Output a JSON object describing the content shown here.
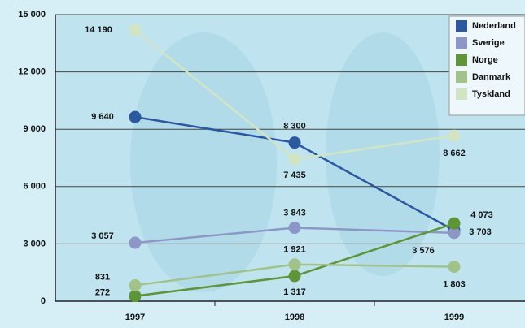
{
  "chart_data": {
    "type": "line",
    "categories": [
      "1997",
      "1998",
      "1999"
    ],
    "series": [
      {
        "name": "Nederland",
        "color": "#2b58a0",
        "values": [
          9640,
          8300,
          3703
        ],
        "value_labels": [
          "9 640",
          "8 300",
          "3 703"
        ]
      },
      {
        "name": "Sverige",
        "color": "#8e96c8",
        "values": [
          3057,
          3843,
          3576
        ],
        "value_labels": [
          "3 057",
          "3 843",
          "3 576"
        ]
      },
      {
        "name": "Norge",
        "color": "#5e9535",
        "values": [
          272,
          1317,
          4073
        ],
        "value_labels": [
          "272",
          "1 317",
          "4 073"
        ]
      },
      {
        "name": "Danmark",
        "color": "#a2c387",
        "values": [
          831,
          1921,
          1803
        ],
        "value_labels": [
          "831",
          "1 921",
          "1 803"
        ]
      },
      {
        "name": "Tyskland",
        "color": "#d3e4c3",
        "values": [
          14190,
          7435,
          8662
        ],
        "value_labels": [
          "14 190",
          "7 435",
          "8 662"
        ]
      }
    ],
    "ylim": [
      0,
      15000
    ],
    "yticks": [
      0,
      {
        "value": 3000,
        "label": "3 000"
      },
      {
        "value": 6000,
        "label": "6 000"
      },
      {
        "value": 9000,
        "label": "9 000"
      },
      {
        "value": 12000,
        "label": "12 000"
      },
      {
        "value": 15000,
        "label": "15 000"
      }
    ],
    "grid": true,
    "legend": "top-right"
  }
}
